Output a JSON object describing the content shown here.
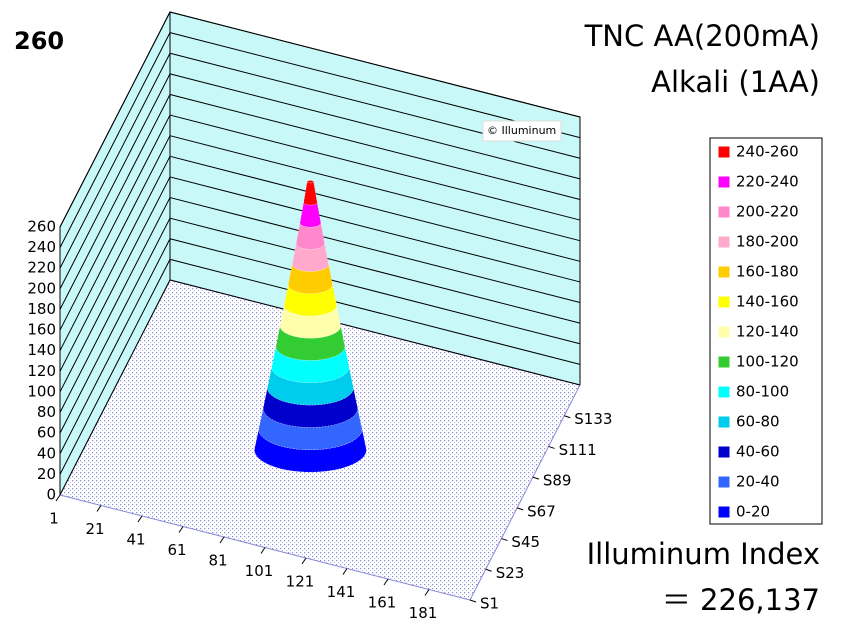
{
  "chart_data": {
    "type": "surface3d",
    "title": [
      "TNC AA(200mA)",
      "Alkali (1AA)"
    ],
    "peak_label": 260,
    "watermark": "© Illuminum",
    "wall_color": "#c8f8f8",
    "floor_color": "#8a8ad8",
    "zlim": [
      0,
      260
    ],
    "zticks": [
      0,
      20,
      40,
      60,
      80,
      100,
      120,
      140,
      160,
      180,
      200,
      220,
      240,
      260
    ],
    "xlim": [
      1,
      201
    ],
    "xticks": [
      1,
      21,
      41,
      61,
      81,
      101,
      121,
      141,
      161,
      181
    ],
    "ylim": [
      1,
      155
    ],
    "yticks": [
      {
        "value": 1,
        "label": "S1"
      },
      {
        "value": 23,
        "label": "S23"
      },
      {
        "value": 45,
        "label": "S45"
      },
      {
        "value": 67,
        "label": "S67"
      },
      {
        "value": 89,
        "label": "S89"
      },
      {
        "value": 111,
        "label": "S111"
      },
      {
        "value": 133,
        "label": "S133"
      }
    ],
    "bands": [
      {
        "low": 240,
        "high": 260,
        "label": "240-260",
        "color": "#ff0000"
      },
      {
        "low": 220,
        "high": 240,
        "label": "220-240",
        "color": "#ff00ff"
      },
      {
        "low": 200,
        "high": 220,
        "label": "200-220",
        "color": "#ff88cc"
      },
      {
        "low": 180,
        "high": 200,
        "label": "180-200",
        "color": "#ffaacc"
      },
      {
        "low": 160,
        "high": 180,
        "label": "160-180",
        "color": "#ffcc00"
      },
      {
        "low": 140,
        "high": 160,
        "label": "140-160",
        "color": "#ffff00"
      },
      {
        "low": 120,
        "high": 140,
        "label": "120-140",
        "color": "#ffffaa"
      },
      {
        "low": 100,
        "high": 120,
        "label": "100-120",
        "color": "#33cc33"
      },
      {
        "low": 80,
        "high": 100,
        "label": "80-100",
        "color": "#00ffff"
      },
      {
        "low": 60,
        "high": 80,
        "label": "60-80",
        "color": "#00ccee"
      },
      {
        "low": 40,
        "high": 60,
        "label": "40-60",
        "color": "#0000cc"
      },
      {
        "low": 20,
        "high": 40,
        "label": "20-40",
        "color": "#3366ff"
      },
      {
        "low": 0,
        "high": 20,
        "label": "0-20",
        "color": "#0000ff"
      }
    ],
    "index_label": "Illuminum Index",
    "index_value": {
      "value": 226137,
      "label": "＝ 226,137"
    }
  }
}
